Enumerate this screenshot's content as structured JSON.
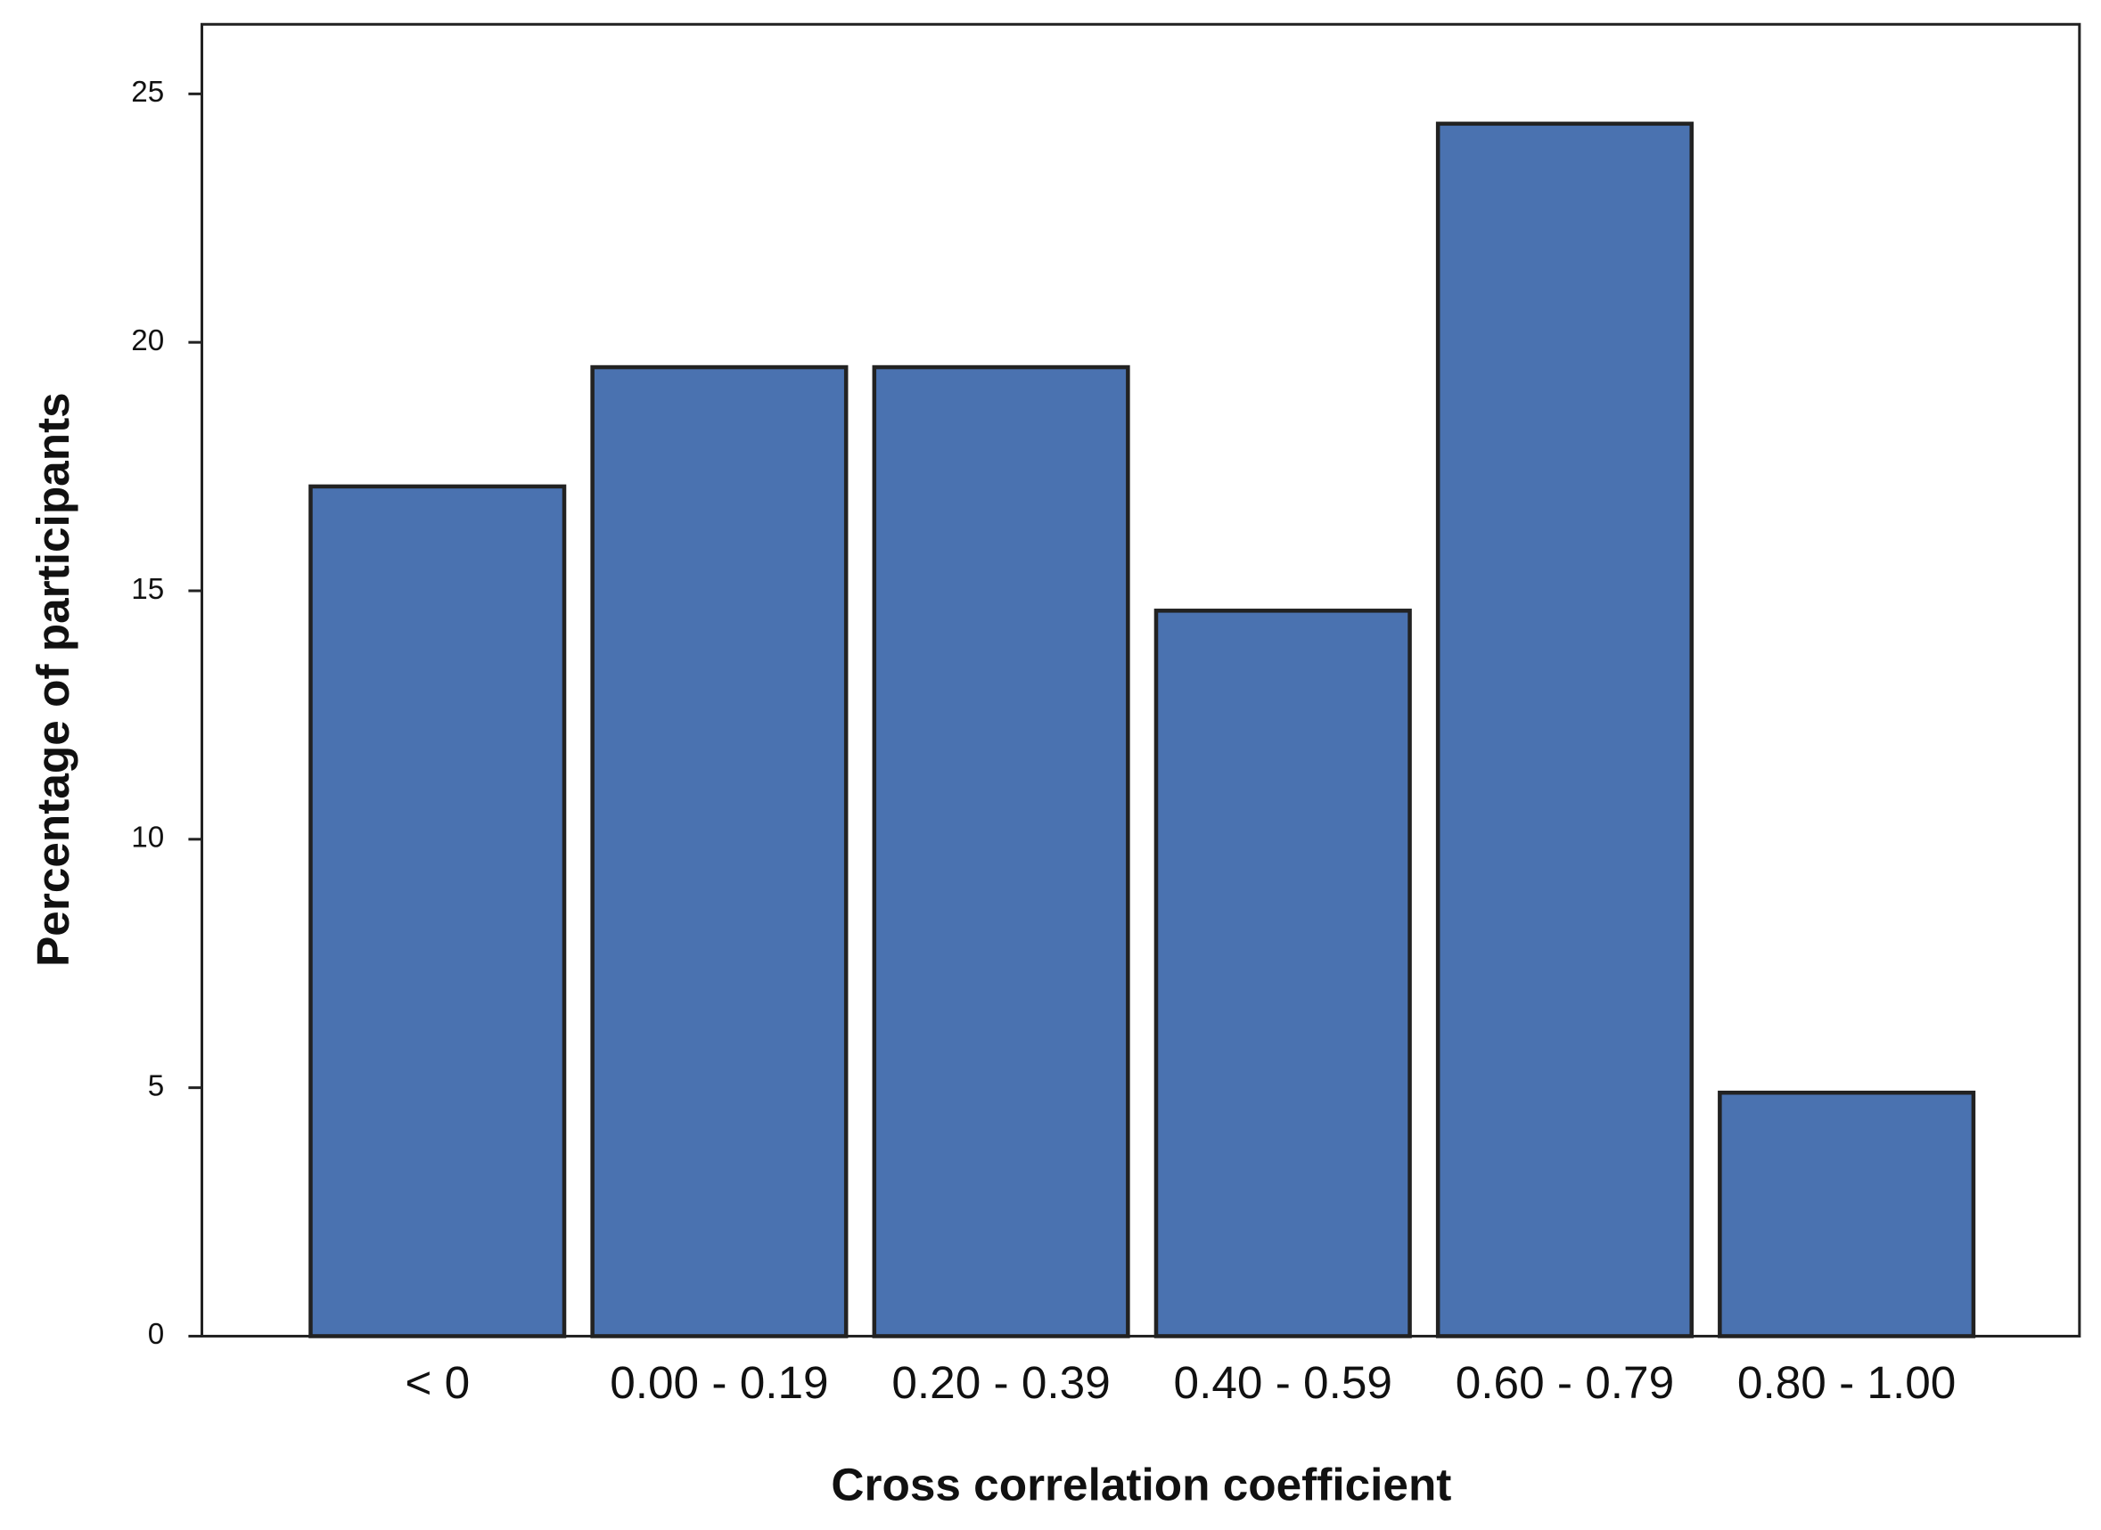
{
  "chart_data": {
    "type": "bar",
    "x_label": "Cross correlation coefficient",
    "y_label": "Percentage of participants",
    "categories": [
      "< 0",
      "0.00 - 0.19",
      "0.20 - 0.39",
      "0.40 - 0.59",
      "0.60 - 0.79",
      "0.80 - 1.00"
    ],
    "values": [
      17.1,
      19.5,
      19.5,
      14.6,
      24.4,
      4.9
    ],
    "color": "#4a72b0",
    "ylim": [
      0,
      26.4
    ],
    "yticks": [
      0,
      5,
      10,
      15,
      20,
      25
    ],
    "grid": false
  }
}
